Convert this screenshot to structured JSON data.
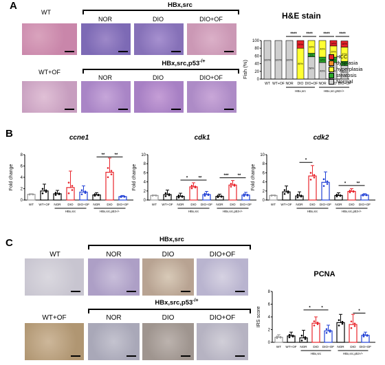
{
  "panelA": {
    "letter": "A",
    "row1": {
      "group": "HBx,src",
      "labels": [
        "WT",
        "NOR",
        "DIO",
        "DIO+OF"
      ]
    },
    "row2": {
      "group": "HBx,src,p53",
      "group_sup": "-/+",
      "labels": [
        "WT+OF",
        "NOR",
        "DIO",
        "DIO+OF"
      ]
    },
    "he_chart": {
      "title": "H&E stain",
      "ylabel": "Fish (%)",
      "yticks": [
        "0",
        "20",
        "40",
        "60",
        "80",
        "100"
      ],
      "xlabels": [
        "WT",
        "WT+OF",
        "NOR",
        "DIO",
        "DIO+OF",
        "NOR",
        "DIO",
        "DIO+OF"
      ],
      "group_labels": [
        "HBx,src",
        "HBx,src,p53-/+"
      ],
      "sig": [
        "****",
        "****",
        "****",
        "****"
      ],
      "legend": [
        {
          "name": "HCC",
          "color": "#e8232a"
        },
        {
          "name": "dysplasia",
          "color": "#f28c28"
        },
        {
          "name": "hyperplasia",
          "color": "#ffff33"
        },
        {
          "name": "steatosis",
          "color": "#2aa82a"
        },
        {
          "name": "Normal",
          "color": "#cfcfcf"
        }
      ]
    }
  },
  "panelB": {
    "letter": "B",
    "ylabel": "Fold change",
    "charts": [
      {
        "title": "ccne1",
        "yticks": [
          "0",
          "2",
          "4",
          "6",
          "8"
        ],
        "sig": [
          "**",
          "**"
        ],
        "group_labels": [
          "HBx,src",
          "HBx,src,p53-/+"
        ]
      },
      {
        "title": "cdk1",
        "yticks": [
          "0",
          "2",
          "4",
          "6",
          "8",
          "10"
        ],
        "sig": [
          "*",
          "**",
          "***",
          "**"
        ],
        "group_labels": [
          "HBx,src",
          "HBx,src,p53-/+"
        ]
      },
      {
        "title": "cdk2",
        "yticks": [
          "0",
          "2",
          "4",
          "6",
          "8",
          "10"
        ],
        "sig": [
          "*",
          "*",
          "**"
        ],
        "group_labels": [
          "HBx,src",
          "HBx,src,p53-/+"
        ]
      }
    ],
    "xlabels": [
      "WT",
      "WT+OF",
      "NOR",
      "DIO",
      "DIO+OF",
      "NOR",
      "DIO",
      "DIO+OF"
    ]
  },
  "panelC": {
    "letter": "C",
    "row1": {
      "group": "HBx,src",
      "labels": [
        "WT",
        "NOR",
        "DIO",
        "DIO+OF"
      ]
    },
    "row2": {
      "group": "HBx,src,p53",
      "group_sup": "-/+",
      "labels": [
        "WT+OF",
        "NOR",
        "DIO",
        "DIO+OF"
      ]
    },
    "pcna": {
      "title": "PCNA",
      "ylabel": "IRS score",
      "yticks": [
        "0",
        "2",
        "4",
        "6",
        "8"
      ],
      "xlabels": [
        "WT",
        "WT+OF",
        "NOR",
        "DIO",
        "DIO+OF",
        "NOR",
        "DIO",
        "DIO+OF"
      ],
      "group_labels": [
        "HBx,src",
        "HBx,src,p53-/+"
      ],
      "sig": [
        "*",
        "*",
        "*"
      ]
    }
  },
  "chart_data": [
    {
      "type": "bar",
      "title": "H&E stain",
      "ylabel": "Fish (%)",
      "ylim": [
        0,
        100
      ],
      "stacked": true,
      "categories": [
        "WT",
        "WT+OF",
        "NOR",
        "DIO",
        "DIO+OF",
        "NOR",
        "DIO",
        "DIO+OF"
      ],
      "series": [
        {
          "name": "HCC",
          "values": [
            0,
            0,
            0,
            20,
            0,
            0,
            14,
            16
          ]
        },
        {
          "name": "dysplasia",
          "values": [
            0,
            0,
            0,
            0,
            0,
            0,
            0,
            0
          ]
        },
        {
          "name": "hyperplasia",
          "values": [
            0,
            0,
            0,
            80,
            33,
            43,
            29,
            37
          ]
        },
        {
          "name": "steatosis",
          "values": [
            0,
            0,
            0,
            0,
            9,
            14,
            14,
            11
          ]
        },
        {
          "name": "Normal",
          "values": [
            100,
            100,
            100,
            0,
            58,
            43,
            43,
            35
          ]
        }
      ],
      "data_labels": [
        [
          "100%"
        ],
        [
          "100%"
        ],
        [
          "100%"
        ],
        [
          "20%",
          "80%"
        ],
        [
          "33%",
          "9%",
          "58%"
        ],
        [
          "43%",
          "14%",
          "43%"
        ],
        [
          "14%",
          "29%",
          "14%",
          "43%"
        ],
        [
          "16%",
          "37%",
          "11%",
          "35%"
        ]
      ]
    },
    {
      "type": "bar",
      "title": "ccne1",
      "ylabel": "Fold change",
      "ylim": [
        0,
        8
      ],
      "categories": [
        "WT",
        "WT+OF",
        "NOR",
        "DIO",
        "DIO+OF",
        "NOR",
        "DIO",
        "DIO+OF"
      ],
      "values": [
        1.0,
        1.6,
        1.1,
        2.2,
        1.4,
        0.9,
        4.9,
        0.6
      ],
      "errors": [
        0.1,
        1.2,
        0.6,
        2.9,
        1.1,
        0.4,
        2.5,
        0.2
      ],
      "colors": [
        "#999999",
        "#000000",
        "#000000",
        "#e8232a",
        "#1f3fd6",
        "#000000",
        "#e8232a",
        "#1f3fd6"
      ]
    },
    {
      "type": "bar",
      "title": "cdk1",
      "ylabel": "Fold change",
      "ylim": [
        0,
        10
      ],
      "categories": [
        "WT",
        "WT+OF",
        "NOR",
        "DIO",
        "DIO+OF",
        "NOR",
        "DIO",
        "DIO+OF"
      ],
      "values": [
        1.0,
        1.2,
        0.8,
        2.9,
        1.2,
        0.8,
        3.3,
        1.1
      ],
      "errors": [
        0.1,
        1.0,
        0.7,
        0.9,
        0.7,
        0.5,
        1.0,
        0.6
      ],
      "colors": [
        "#999999",
        "#000000",
        "#000000",
        "#e8232a",
        "#1f3fd6",
        "#000000",
        "#e8232a",
        "#1f3fd6"
      ]
    },
    {
      "type": "bar",
      "title": "cdk2",
      "ylabel": "Fold change",
      "ylim": [
        0,
        10
      ],
      "categories": [
        "WT",
        "WT+OF",
        "NOR",
        "DIO",
        "DIO+OF",
        "NOR",
        "DIO",
        "DIO+OF"
      ],
      "values": [
        1.0,
        1.8,
        0.9,
        5.3,
        3.9,
        1.0,
        1.9,
        1.1
      ],
      "errors": [
        0.1,
        1.3,
        0.9,
        2.3,
        2.3,
        0.6,
        0.6,
        0.3
      ],
      "colors": [
        "#999999",
        "#000000",
        "#000000",
        "#e8232a",
        "#1f3fd6",
        "#000000",
        "#e8232a",
        "#1f3fd6"
      ]
    },
    {
      "type": "bar",
      "title": "PCNA",
      "ylabel": "IRS score",
      "ylim": [
        0,
        8
      ],
      "categories": [
        "WT",
        "WT+OF",
        "NOR",
        "DIO",
        "DIO+OF",
        "NOR",
        "DIO",
        "DIO+OF"
      ],
      "values": [
        0.8,
        1.0,
        0.7,
        3.0,
        1.8,
        3.1,
        2.8,
        1.1
      ],
      "errors": [
        0.4,
        0.6,
        1.2,
        1.0,
        0.9,
        1.3,
        1.6,
        0.5
      ],
      "colors": [
        "#999999",
        "#000000",
        "#000000",
        "#e8232a",
        "#1f3fd6",
        "#000000",
        "#e8232a",
        "#1f3fd6"
      ]
    }
  ],
  "colors": {
    "nor": "#000000",
    "dio": "#e8232a",
    "dioof": "#1f3fd6",
    "wt": "#999999"
  }
}
